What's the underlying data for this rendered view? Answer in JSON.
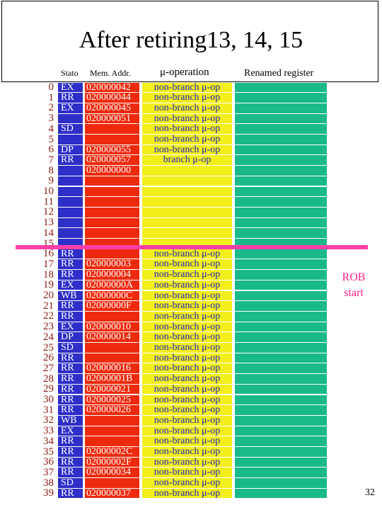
{
  "slide": {
    "title": "After retiring13, 14, 15",
    "page_number": "32"
  },
  "headers": {
    "state": "Stato",
    "address": "Mem. Addr.",
    "operation": "μ-operation",
    "register": "Renamed register"
  },
  "rob": {
    "label_line1": "ROB",
    "label_line2": "start",
    "start_index": 16
  },
  "colors": {
    "state_column": "#2e2ec8",
    "address_column": "#ee2a0e",
    "operation_column": "#f3ef1a",
    "register_column": "#19b98a",
    "rob_marker": "#ff3fa8",
    "index_text": "#8b1a10"
  },
  "rows": [
    {
      "index": "0",
      "state": "EX",
      "address": "020000042",
      "op": "non-branch μ-op"
    },
    {
      "index": "1",
      "state": "RR",
      "address": "020000044",
      "op": "non-branch μ-op"
    },
    {
      "index": "2",
      "state": "EX",
      "address": "020000045",
      "op": "non-branch μ-op"
    },
    {
      "index": "3",
      "state": "",
      "address": "020000051",
      "op": "non-branch μ-op"
    },
    {
      "index": "4",
      "state": "SD",
      "address": "",
      "op": "non-branch μ-op"
    },
    {
      "index": "5",
      "state": "",
      "address": "",
      "op": "non-branch μ-op"
    },
    {
      "index": "6",
      "state": "DP",
      "address": "020000055",
      "op": "non-branch μ-op"
    },
    {
      "index": "7",
      "state": "RR",
      "address": "020000057",
      "op": "branch μ-op"
    },
    {
      "index": "8",
      "state": "",
      "address": "020000000",
      "op": ""
    },
    {
      "index": "9",
      "state": "",
      "address": "",
      "op": ""
    },
    {
      "index": "10",
      "state": "",
      "address": "",
      "op": ""
    },
    {
      "index": "11",
      "state": "",
      "address": "",
      "op": ""
    },
    {
      "index": "12",
      "state": "",
      "address": "",
      "op": ""
    },
    {
      "index": "13",
      "state": "",
      "address": "",
      "op": ""
    },
    {
      "index": "14",
      "state": "",
      "address": "",
      "op": ""
    },
    {
      "index": "15",
      "state": "",
      "address": "",
      "op": ""
    },
    {
      "index": "16",
      "state": "RR",
      "address": "",
      "op": "non-branch μ-op"
    },
    {
      "index": "17",
      "state": "RR",
      "address": "020000003",
      "op": "non-branch μ-op"
    },
    {
      "index": "18",
      "state": "RR",
      "address": "020000004",
      "op": "non-branch μ-op"
    },
    {
      "index": "19",
      "state": "EX",
      "address": "02000000A",
      "op": "non-branch μ-op"
    },
    {
      "index": "20",
      "state": "WB",
      "address": "02000000C",
      "op": "non-branch μ-op"
    },
    {
      "index": "21",
      "state": "RR",
      "address": "02000000F",
      "op": "non-branch μ-op"
    },
    {
      "index": "22",
      "state": "RR",
      "address": "",
      "op": "non-branch μ-op"
    },
    {
      "index": "23",
      "state": "EX",
      "address": "020000010",
      "op": "non-branch μ-op"
    },
    {
      "index": "24",
      "state": "DP",
      "address": "020000014",
      "op": "non-branch μ-op"
    },
    {
      "index": "25",
      "state": "SD",
      "address": "",
      "op": "non-branch μ-op"
    },
    {
      "index": "26",
      "state": "RR",
      "address": "",
      "op": "non-branch μ-op"
    },
    {
      "index": "27",
      "state": "RR",
      "address": "020000016",
      "op": "non-branch μ-op"
    },
    {
      "index": "28",
      "state": "RR",
      "address": "02000001B",
      "op": "non-branch μ-op"
    },
    {
      "index": "29",
      "state": "RR",
      "address": "020000021",
      "op": "non-branch μ-op"
    },
    {
      "index": "30",
      "state": "RR",
      "address": "020000025",
      "op": "non-branch μ-op"
    },
    {
      "index": "31",
      "state": "RR",
      "address": "020000026",
      "op": "non-branch μ-op"
    },
    {
      "index": "32",
      "state": "WB",
      "address": "",
      "op": "non-branch μ-op"
    },
    {
      "index": "33",
      "state": "EX",
      "address": "",
      "op": "non-branch μ-op"
    },
    {
      "index": "34",
      "state": "RR",
      "address": "",
      "op": "non-branch μ-op"
    },
    {
      "index": "35",
      "state": "RR",
      "address": "02000002C",
      "op": "non-branch μ-op"
    },
    {
      "index": "36",
      "state": "RR",
      "address": "02000002F",
      "op": "non-branch μ-op"
    },
    {
      "index": "37",
      "state": "RR",
      "address": "020000034",
      "op": "non-branch μ-op"
    },
    {
      "index": "38",
      "state": "SD",
      "address": "",
      "op": "non-branch μ-op"
    },
    {
      "index": "39",
      "state": "RR",
      "address": "020000037",
      "op": "non-branch μ-op"
    }
  ]
}
